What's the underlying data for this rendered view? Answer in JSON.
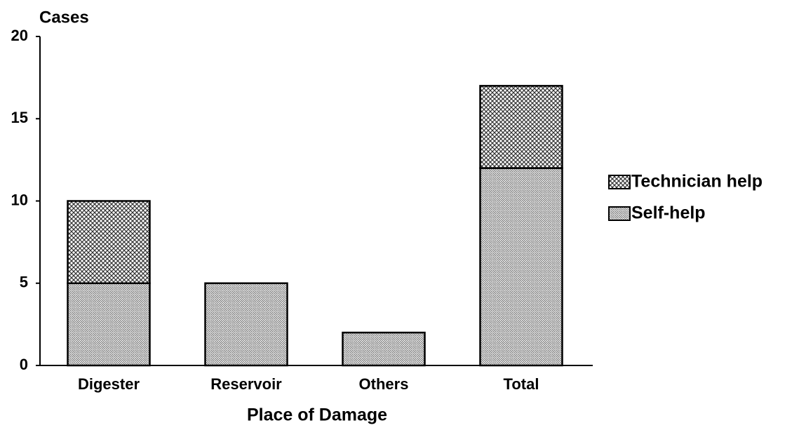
{
  "chart_data": {
    "type": "stacked_bar",
    "y_axis_label": "Cases",
    "x_axis_label": "Place of Damage",
    "categories": [
      "Digester",
      "Reservoir",
      "Others",
      "Total"
    ],
    "series": [
      {
        "name": "Self-help",
        "color": "#777777",
        "values": [
          5,
          5,
          2,
          12
        ]
      },
      {
        "name": "Technician help",
        "color": "#333333",
        "values": [
          5,
          0,
          0,
          5
        ]
      }
    ],
    "ylim": [
      0,
      20
    ],
    "yticks": [
      0,
      5,
      10,
      15,
      20
    ],
    "legend": "right"
  }
}
